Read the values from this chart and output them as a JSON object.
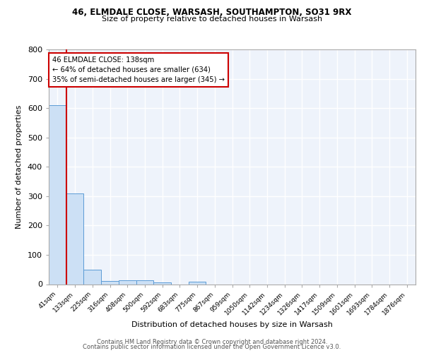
{
  "title1": "46, ELMDALE CLOSE, WARSASH, SOUTHAMPTON, SO31 9RX",
  "title2": "Size of property relative to detached houses in Warsash",
  "xlabel": "Distribution of detached houses by size in Warsash",
  "ylabel": "Number of detached properties",
  "footer1": "Contains HM Land Registry data © Crown copyright and database right 2024.",
  "footer2": "Contains public sector information licensed under the Open Government Licence v3.0.",
  "bin_labels": [
    "41sqm",
    "133sqm",
    "225sqm",
    "316sqm",
    "408sqm",
    "500sqm",
    "592sqm",
    "683sqm",
    "775sqm",
    "867sqm",
    "959sqm",
    "1050sqm",
    "1142sqm",
    "1234sqm",
    "1326sqm",
    "1417sqm",
    "1509sqm",
    "1601sqm",
    "1693sqm",
    "1784sqm",
    "1876sqm"
  ],
  "bin_values": [
    609,
    310,
    50,
    10,
    13,
    13,
    5,
    0,
    8,
    0,
    0,
    0,
    0,
    0,
    0,
    0,
    0,
    0,
    0,
    0,
    0
  ],
  "property_bin_index": 1,
  "property_sqm": 138,
  "annotation_line1": "46 ELMDALE CLOSE: 138sqm",
  "annotation_line2": "← 64% of detached houses are smaller (634)",
  "annotation_line3": "35% of semi-detached houses are larger (345) →",
  "bar_color": "#cce0f5",
  "bar_edge_color": "#5b9bd5",
  "vline_color": "#cc0000",
  "annotation_box_color": "#ffffff",
  "annotation_box_edge": "#cc0000",
  "background_color": "#eef3fb",
  "grid_color": "#ffffff",
  "ylim": [
    0,
    800
  ],
  "yticks": [
    0,
    100,
    200,
    300,
    400,
    500,
    600,
    700,
    800
  ]
}
